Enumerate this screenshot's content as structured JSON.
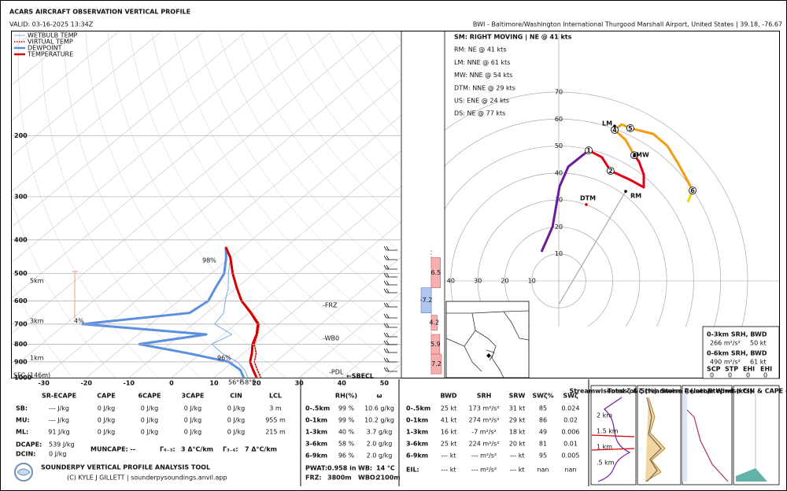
{
  "header": {
    "title": "ACARS AIRCRAFT OBSERVATION VERTICAL PROFILE",
    "valid": "VALID: 03-16-2025 13:34Z",
    "location": "BWI - Baltimore/Washington International Thurgood Marshall Airport, United States | 39.18, -76.67"
  },
  "chart_data": [
    {
      "type": "skewt",
      "ylim": [
        1000,
        100
      ],
      "yticks": [
        1000,
        900,
        800,
        700,
        600,
        500,
        400,
        300,
        200
      ],
      "y_log": true,
      "xlim": [
        -37.5,
        54
      ],
      "xticks": [
        -30,
        -20,
        -10,
        0,
        10,
        20,
        30,
        40,
        50
      ],
      "grid": true,
      "pressure": [
        1000,
        950,
        900,
        850,
        800,
        750,
        700,
        650,
        600,
        550,
        500,
        450,
        420
      ],
      "series": [
        {
          "name": "WETBULB TEMP",
          "color": "#7fa8e6",
          "linewidth": 1,
          "values": [
            18,
            15,
            11,
            5,
            0,
            2,
            -5,
            -6,
            -9,
            -12,
            -16,
            -20,
            -24
          ]
        },
        {
          "name": "VIRTUAL TEMP",
          "color": "#d40000",
          "linewidth": 1.6,
          "linestyle": "dotted",
          "values": [
            21,
            18,
            15,
            13,
            10,
            8,
            5.5,
            0.6,
            -5,
            -10,
            -15,
            -20,
            -24
          ]
        },
        {
          "name": "DEWPOINT",
          "color": "#5b8fe0",
          "linewidth": 3,
          "values": [
            17,
            14,
            9,
            -3,
            -17,
            -4,
            -36,
            -14,
            -13,
            -15,
            -17,
            -21,
            -24
          ]
        },
        {
          "name": "TEMPERATURE",
          "color": "#d40000",
          "linewidth": 3,
          "values": [
            20,
            17,
            14,
            12,
            9.6,
            7.8,
            5.2,
            0.4,
            -5.2,
            -10,
            -15,
            -20,
            -24
          ]
        }
      ],
      "annotations": [
        "SFC (146m)",
        "1km",
        "3km",
        "5km",
        "98%",
        "4%",
        "96%",
        "-FRZ",
        "-WB0",
        "-PDL",
        "←SBECL",
        "56°F",
        "58°F"
      ],
      "lapse_rates": {
        "values": [
          6.5,
          -7.2,
          4.2,
          5.9,
          7.2
        ],
        "layers": [
          [
            450,
            550
          ],
          [
            550,
            650
          ],
          [
            660,
            730
          ],
          [
            750,
            855
          ],
          [
            855,
            975
          ]
        ]
      }
    },
    {
      "type": "hodograph",
      "rlim": [
        0,
        70
      ],
      "rticks": [
        10,
        20,
        30,
        40,
        50,
        60,
        70
      ],
      "segments": [
        {
          "color": "#6a1b9a",
          "u": [
            -6.4,
            -2.3,
            0.3,
            3.5,
            11.1
          ],
          "v": [
            10.8,
            20.1,
            35,
            42.3,
            48.4
          ]
        },
        {
          "color": "#e0001a",
          "u": [
            11.1,
            16,
            19.2,
            26.2,
            31.5,
            31.5,
            29.7,
            28
          ],
          "v": [
            48.4,
            45.8,
            40.8,
            37.6,
            34.7,
            39.4,
            44.3,
            46.6
          ]
        },
        {
          "color": "#f39c12",
          "u": [
            28,
            24.8,
            20.7,
            23.3,
            26.5,
            35,
            40.2,
            44.3,
            47.8,
            49.6
          ],
          "v": [
            46.6,
            52.2,
            56,
            58,
            56.6,
            54.5,
            50.1,
            43.4,
            37,
            33.5
          ]
        },
        {
          "color": "#f5d300",
          "u": [
            49.6,
            47.8
          ],
          "v": [
            33.5,
            29.2
          ]
        }
      ],
      "markers": [
        {
          "label": "1",
          "u": 11.1,
          "v": 48.4
        },
        {
          "label": "2",
          "u": 19.2,
          "v": 40.8
        },
        {
          "label": "3",
          "u": 28,
          "v": 46.6
        },
        {
          "label": "4",
          "u": 20.7,
          "v": 56
        },
        {
          "label": "5",
          "u": 26.5,
          "v": 56.6
        },
        {
          "label": "6",
          "u": 49.6,
          "v": 33.5
        }
      ],
      "storm_motions": [
        {
          "label": "RM",
          "u": 24.8,
          "v": 33.2
        },
        {
          "label": "LM",
          "u": 20.7,
          "v": 57.4
        },
        {
          "label": "MW",
          "u": 28,
          "v": 46.6
        },
        {
          "label": "DTM",
          "u": 10.2,
          "v": 28.3
        }
      ],
      "summary": [
        "SM: RIGHT MOVING | NE @ 41 kts",
        "RM: NE @ 41 kts",
        "LM: NNE @ 61 kts",
        "MW: NNE @ 54 kts",
        "DTM: NNE @ 29 kts",
        "US: ENE @ 24 kts",
        "DS: NE @ 77 kts"
      ]
    }
  ],
  "thermo_table": {
    "headers": [
      "SR-ECAPE",
      "CAPE",
      "6CAPE",
      "3CAPE",
      "CIN",
      "LCL"
    ],
    "rows": [
      {
        "label": "SB:",
        "cells": [
          "--- J/kg",
          "0 J/kg",
          "0 J/kg",
          "0 J/kg",
          "0 J/kg",
          "3 m"
        ]
      },
      {
        "label": "MU:",
        "cells": [
          "--- J/kg",
          "0 J/kg",
          "0 J/kg",
          "0 J/kg",
          "0 J/kg",
          "955 m"
        ]
      },
      {
        "label": "ML:",
        "cells": [
          "91 J/kg",
          "0 J/kg",
          "0 J/kg",
          "0 J/kg",
          "0 J/kg",
          "215 m"
        ]
      }
    ]
  },
  "thermo_extra": {
    "dcape_label": "DCAPE:",
    "dcape": "539 J/kg",
    "dcin_label": "DCIN:",
    "dcin": "0 J/kg",
    "muncape": "MUNCAPE: --",
    "lr03_label": "Γ₀₋₃:",
    "lr03": "3 Δ°C/km",
    "lr36_label": "Γ₃₋₆:",
    "lr36": "7 Δ°C/km"
  },
  "moisture_table": {
    "headers": [
      "RH(%)",
      "ω"
    ],
    "rows": [
      {
        "label": "0-.5km",
        "cells": [
          "99 %",
          "10.6 g/kg"
        ]
      },
      {
        "label": "0-1km",
        "cells": [
          "99 %",
          "10.2 g/kg"
        ]
      },
      {
        "label": "1-3km",
        "cells": [
          "40 %",
          "3.7 g/kg"
        ]
      },
      {
        "label": "3-6km",
        "cells": [
          "58 %",
          "2.0 g/kg"
        ]
      },
      {
        "label": "6-9km",
        "cells": [
          "96 %",
          "2.0 g/kg"
        ]
      }
    ],
    "footer": [
      "PWAT:",
      "0.958 in",
      "WB:",
      "14 °C",
      "FRZ:",
      "3800m",
      "WBO:",
      "2100m"
    ]
  },
  "kinematic_table": {
    "headers": [
      "BWD",
      "SRH",
      "SRW",
      "SWζ%",
      "SWζ"
    ],
    "rows": [
      {
        "label": "0-.5km",
        "cells": [
          "25 kt",
          "173 m²/s²",
          "31 kt",
          "85",
          "0.024"
        ]
      },
      {
        "label": "0-1km",
        "cells": [
          "41 kt",
          "274 m²/s²",
          "29 kt",
          "86",
          "0.02"
        ]
      },
      {
        "label": "1-3km",
        "cells": [
          "16 kt",
          "-7 m²/s²",
          "18 kt",
          "49",
          "0.006"
        ]
      },
      {
        "label": "3-6km",
        "cells": [
          "25 kt",
          "224 m²/s²",
          "20 kt",
          "81",
          "0.01"
        ]
      },
      {
        "label": "6-9km",
        "cells": [
          "--- kt",
          "--- m²/s²",
          "--- kt",
          "95",
          "0.005"
        ]
      },
      {
        "label": "EIL:",
        "cells": [
          "--- kt",
          "--- m²/s²",
          "--- kt",
          "nan",
          "nan"
        ]
      }
    ]
  },
  "srh_box": {
    "rows": [
      {
        "label": "0-3km SRH,  BWD",
        "srh": "266 m²/s²",
        "bwd": "50 kt"
      },
      {
        "label": "0-6km SRH,  BWD",
        "srh": "490 m²/s²",
        "bwd": "61 kt"
      }
    ],
    "indices": [
      "SCP",
      "STP",
      "EHI",
      "EHI"
    ],
    "index_values": [
      "0",
      "0",
      "0",
      "0"
    ]
  },
  "small_panels": {
    "titles": [
      "Streamwiseness of ζ (%)",
      "Total ζ & Streamwise ζ (/sec)",
      "Storm Relative Wind (kts)",
      "Stepwise CIN & CAPE (J/kg)"
    ],
    "height_labels": [
      "2 km",
      "1.5 km",
      "1 km",
      ".5 km"
    ]
  },
  "footer": {
    "tool": "SOUNDERPY VERTICAL PROFILE ANALYSIS TOOL",
    "credit": "(C) KYLE J GILLETT | sounderpysoundings.anvil.app"
  }
}
